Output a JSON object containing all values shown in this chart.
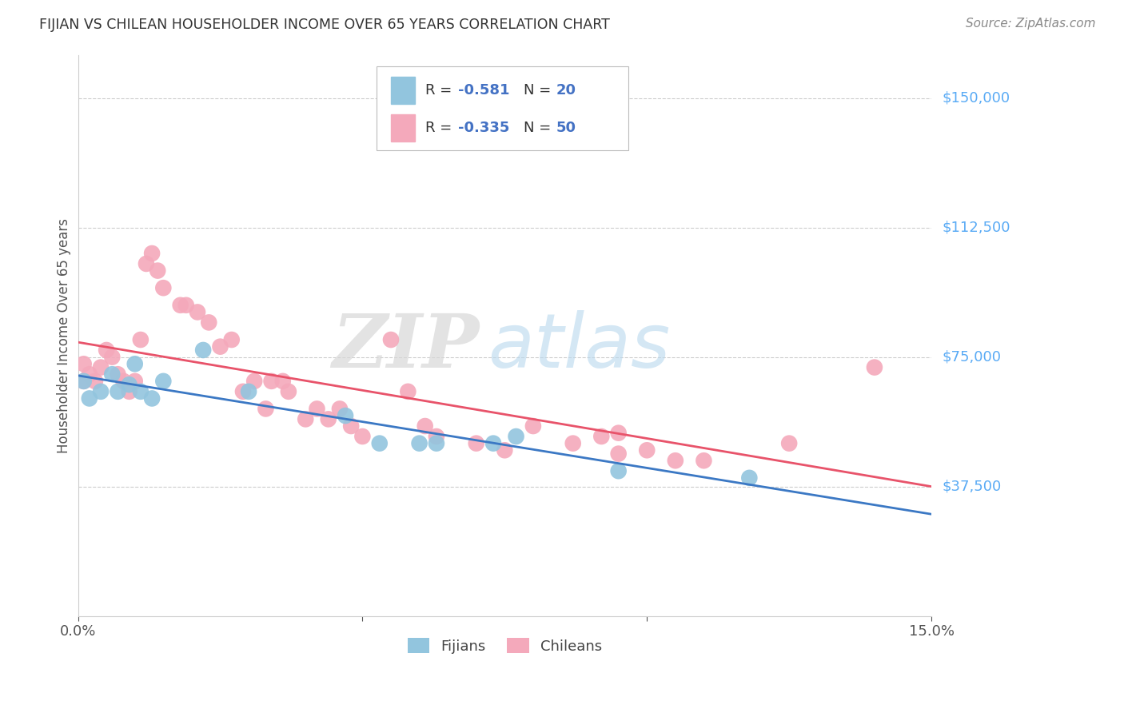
{
  "title": "FIJIAN VS CHILEAN HOUSEHOLDER INCOME OVER 65 YEARS CORRELATION CHART",
  "source": "Source: ZipAtlas.com",
  "ylabel": "Householder Income Over 65 years",
  "xlim": [
    0.0,
    0.15
  ],
  "ylim": [
    0,
    162500
  ],
  "ytick_labels_right": [
    "$37,500",
    "$75,000",
    "$112,500",
    "$150,000"
  ],
  "ytick_values_right": [
    37500,
    75000,
    112500,
    150000
  ],
  "fijian_color": "#92c5de",
  "chilean_color": "#f4a9bb",
  "fijian_line_color": "#3b78c4",
  "chilean_line_color": "#e8536a",
  "watermark_zip": "ZIP",
  "watermark_atlas": "atlas",
  "background_color": "#ffffff",
  "grid_color": "#cccccc",
  "fijian_x": [
    0.001,
    0.002,
    0.004,
    0.006,
    0.007,
    0.009,
    0.01,
    0.011,
    0.013,
    0.015,
    0.022,
    0.03,
    0.047,
    0.053,
    0.06,
    0.063,
    0.073,
    0.077,
    0.095,
    0.118
  ],
  "fijian_y": [
    68000,
    63000,
    65000,
    70000,
    65000,
    67000,
    73000,
    65000,
    63000,
    68000,
    77000,
    65000,
    58000,
    50000,
    50000,
    50000,
    50000,
    52000,
    42000,
    40000
  ],
  "chilean_x": [
    0.001,
    0.001,
    0.002,
    0.003,
    0.004,
    0.005,
    0.006,
    0.007,
    0.008,
    0.009,
    0.01,
    0.011,
    0.012,
    0.013,
    0.014,
    0.015,
    0.018,
    0.019,
    0.021,
    0.023,
    0.025,
    0.027,
    0.029,
    0.031,
    0.033,
    0.034,
    0.036,
    0.037,
    0.04,
    0.042,
    0.044,
    0.046,
    0.048,
    0.05,
    0.055,
    0.058,
    0.061,
    0.063,
    0.07,
    0.075,
    0.08,
    0.087,
    0.092,
    0.095,
    0.095,
    0.1,
    0.105,
    0.11,
    0.125,
    0.14
  ],
  "chilean_y": [
    68000,
    73000,
    70000,
    68000,
    72000,
    77000,
    75000,
    70000,
    68000,
    65000,
    68000,
    80000,
    102000,
    105000,
    100000,
    95000,
    90000,
    90000,
    88000,
    85000,
    78000,
    80000,
    65000,
    68000,
    60000,
    68000,
    68000,
    65000,
    57000,
    60000,
    57000,
    60000,
    55000,
    52000,
    80000,
    65000,
    55000,
    52000,
    50000,
    48000,
    55000,
    50000,
    52000,
    47000,
    53000,
    48000,
    45000,
    45000,
    50000,
    72000
  ],
  "legend_fijian_r": "-0.581",
  "legend_fijian_n": "20",
  "legend_chilean_r": "-0.335",
  "legend_chilean_n": "50",
  "legend_text_color": "#4472c4",
  "legend_label_color": "#333333"
}
